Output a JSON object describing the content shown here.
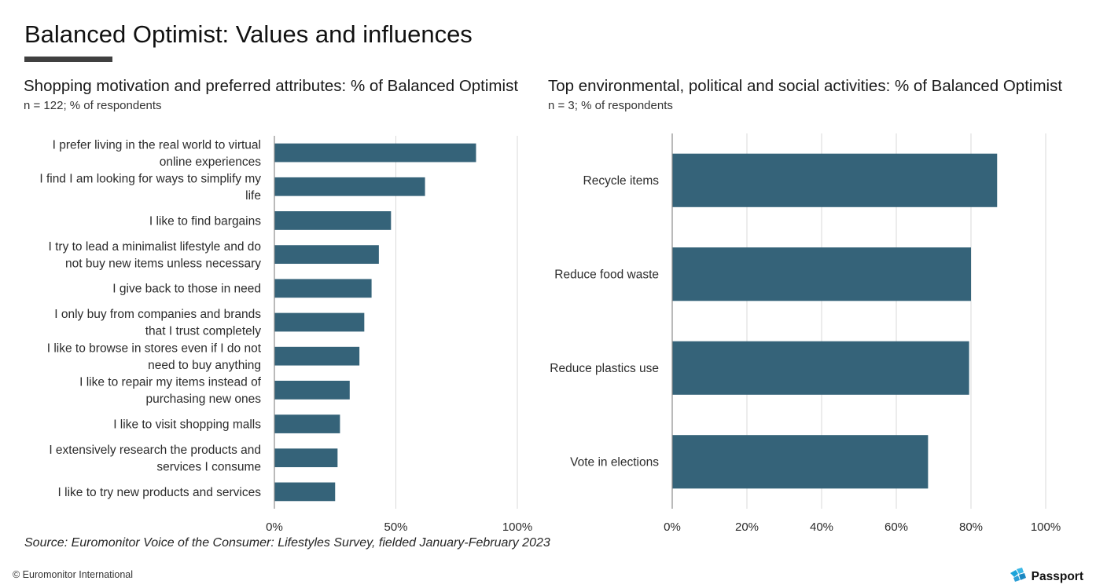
{
  "header": {
    "title": "Balanced Optimist: Values and influences"
  },
  "left_panel": {
    "title": "Shopping motivation and preferred attributes: % of Balanced Optimist",
    "subtitle": "n = 122; % of respondents"
  },
  "right_panel": {
    "title": "Top environmental, political and social activities: % of Balanced Optimist",
    "subtitle": "n = 3; % of respondents"
  },
  "chart_data": [
    {
      "type": "bar",
      "orientation": "horizontal",
      "categories": [
        [
          "I prefer living in the real world to virtual",
          "online experiences"
        ],
        [
          "I find I am looking for ways to simplify my",
          "life"
        ],
        [
          "I like to find bargains"
        ],
        [
          "I try to lead a minimalist lifestyle and do",
          "not buy new items unless necessary"
        ],
        [
          "I give back to those in need"
        ],
        [
          "I only buy from companies and brands",
          "that I trust completely"
        ],
        [
          "I like to browse in stores even if I do not",
          "need to buy anything"
        ],
        [
          "I like to repair my items instead of",
          "purchasing new ones"
        ],
        [
          "I like to visit shopping malls"
        ],
        [
          "I extensively research the products and",
          "services I consume"
        ],
        [
          "I like to try new products and services"
        ]
      ],
      "values": [
        83,
        62,
        48,
        43,
        40,
        37,
        35,
        31,
        27,
        26,
        25
      ],
      "xlim": [
        0,
        100
      ],
      "ticks": [
        "0%",
        "50%",
        "100%"
      ],
      "tick_values": [
        0,
        50,
        100
      ],
      "grid": true,
      "bar_color": "#356379"
    },
    {
      "type": "bar",
      "orientation": "horizontal",
      "categories": [
        [
          "Recycle items"
        ],
        [
          "Reduce food waste"
        ],
        [
          "Reduce plastics use"
        ],
        [
          "Vote in elections"
        ]
      ],
      "values": [
        87,
        80,
        79.5,
        68.5
      ],
      "xlim": [
        0,
        100
      ],
      "ticks": [
        "0%",
        "20%",
        "40%",
        "60%",
        "80%",
        "100%"
      ],
      "tick_values": [
        0,
        20,
        40,
        60,
        80,
        100
      ],
      "grid": true,
      "bar_color": "#356379"
    }
  ],
  "footer": {
    "source": "Source: Euromonitor Voice of the Consumer: Lifestyles Survey, fielded January-February 2023",
    "copyright": "© Euromonitor International",
    "brand": "Passport",
    "brand_icon": "passport-logo-icon",
    "brand_color": "#1aa3d9"
  }
}
